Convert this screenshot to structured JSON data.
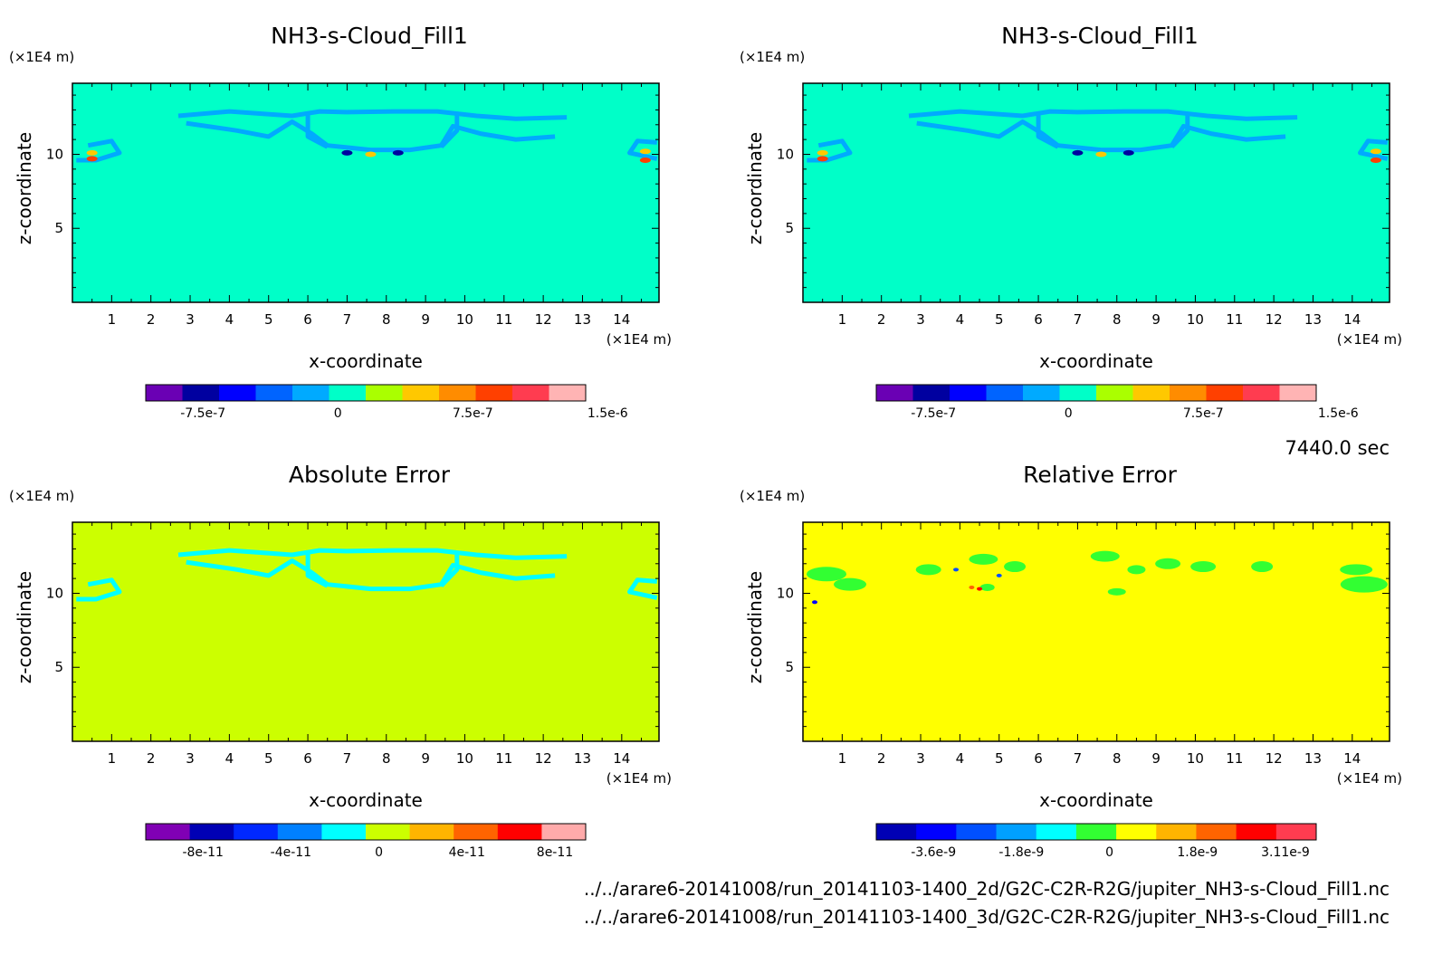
{
  "time_label": "7440.0 sec",
  "file_paths": [
    "../../arare6-20141008/run_20141103-1400_2d/G2C-C2R-R2G/jupiter_NH3-s-Cloud_Fill1.nc",
    "../../arare6-20141008/run_20141103-1400_3d/G2C-C2R-R2G/jupiter_NH3-s-Cloud_Fill1.nc"
  ],
  "chart_data": [
    {
      "type": "heatmap",
      "title": "NH3-s-Cloud_Fill1",
      "xlabel": "x-coordinate",
      "ylabel": "z-coordinate",
      "x_unit": "(×1E4 m)",
      "y_unit": "(×1E4 m)",
      "x_ticks": [
        1,
        2,
        3,
        4,
        5,
        6,
        7,
        8,
        9,
        10,
        11,
        12,
        13,
        14
      ],
      "y_ticks": [
        5,
        10
      ],
      "background_color": "#00ffc8",
      "colorbar": {
        "colors": [
          "#6a00b4",
          "#0000a0",
          "#0000ff",
          "#0064ff",
          "#00aaff",
          "#00ffc8",
          "#aaff00",
          "#ffc800",
          "#ff8c00",
          "#ff4000",
          "#ff3c50",
          "#ffb4b4"
        ],
        "tick_labels": [
          "-7.5e-7",
          "0",
          "7.5e-7",
          "1.5e-6"
        ]
      }
    },
    {
      "type": "heatmap",
      "title": "NH3-s-Cloud_Fill1",
      "xlabel": "x-coordinate",
      "ylabel": "z-coordinate",
      "x_unit": "(×1E4 m)",
      "y_unit": "(×1E4 m)",
      "x_ticks": [
        1,
        2,
        3,
        4,
        5,
        6,
        7,
        8,
        9,
        10,
        11,
        12,
        13,
        14
      ],
      "y_ticks": [
        5,
        10
      ],
      "background_color": "#00ffc8",
      "colorbar": {
        "colors": [
          "#6a00b4",
          "#0000a0",
          "#0000ff",
          "#0064ff",
          "#00aaff",
          "#00ffc8",
          "#aaff00",
          "#ffc800",
          "#ff8c00",
          "#ff4000",
          "#ff3c50",
          "#ffb4b4"
        ],
        "tick_labels": [
          "-7.5e-7",
          "0",
          "7.5e-7",
          "1.5e-6"
        ]
      }
    },
    {
      "type": "heatmap",
      "title": "Absolute Error",
      "xlabel": "x-coordinate",
      "ylabel": "z-coordinate",
      "x_unit": "(×1E4 m)",
      "y_unit": "(×1E4 m)",
      "x_ticks": [
        1,
        2,
        3,
        4,
        5,
        6,
        7,
        8,
        9,
        10,
        11,
        12,
        13,
        14
      ],
      "y_ticks": [
        5,
        10
      ],
      "background_color": "#ccff00",
      "colorbar": {
        "colors": [
          "#8000b4",
          "#0000b4",
          "#0028ff",
          "#0080ff",
          "#00ffff",
          "#ccff00",
          "#ffb400",
          "#ff6400",
          "#ff0000",
          "#ffaaaa"
        ],
        "tick_labels": [
          "-8e-11",
          "-4e-11",
          "0",
          "4e-11",
          "8e-11"
        ]
      }
    },
    {
      "type": "heatmap",
      "title": "Relative Error",
      "xlabel": "x-coordinate",
      "ylabel": "z-coordinate",
      "x_unit": "(×1E4 m)",
      "y_unit": "(×1E4 m)",
      "x_ticks": [
        1,
        2,
        3,
        4,
        5,
        6,
        7,
        8,
        9,
        10,
        11,
        12,
        13,
        14
      ],
      "y_ticks": [
        5,
        10
      ],
      "background_color": "#ffff00",
      "colorbar": {
        "colors": [
          "#0000b4",
          "#0000ff",
          "#0050ff",
          "#00a0ff",
          "#00ffff",
          "#32ff32",
          "#ffff00",
          "#ffb400",
          "#ff6400",
          "#ff0000",
          "#ff3c50"
        ],
        "tick_labels": [
          "-3.6e-9",
          "-1.8e-9",
          "0",
          "1.8e-9",
          "3.11e-9"
        ]
      }
    }
  ]
}
